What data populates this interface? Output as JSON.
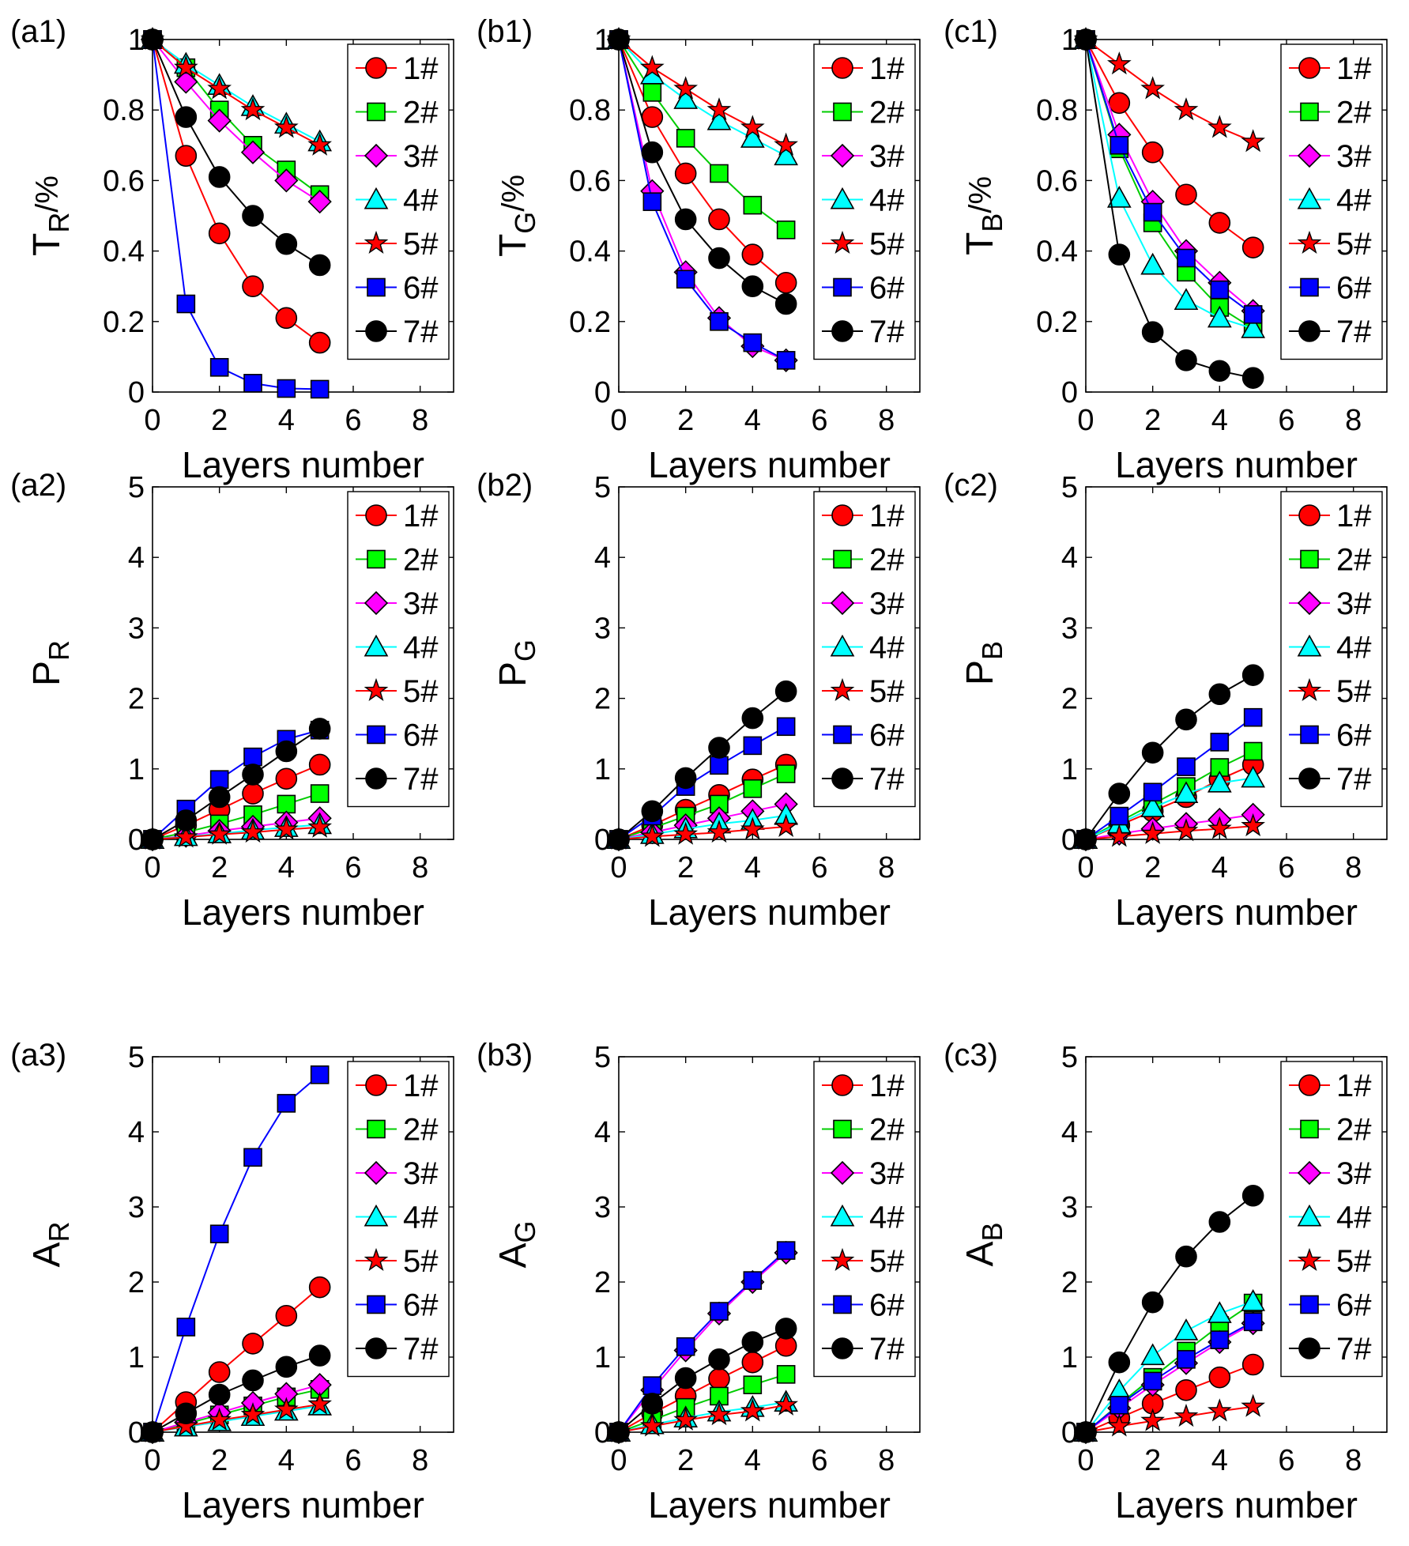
{
  "series_styles": [
    {
      "name": "1#",
      "line": "#ff0000",
      "fill": "#ff0000",
      "marker": "circle"
    },
    {
      "name": "2#",
      "line": "#00cc00",
      "fill": "#00ff00",
      "marker": "square"
    },
    {
      "name": "3#",
      "line": "#ff00ff",
      "fill": "#ff00ff",
      "marker": "diamond"
    },
    {
      "name": "4#",
      "line": "#00ffff",
      "fill": "#00ffff",
      "marker": "triangle"
    },
    {
      "name": "5#",
      "line": "#ff0000",
      "fill": "#ff0000",
      "marker": "star"
    },
    {
      "name": "6#",
      "line": "#0000ff",
      "fill": "#0000ff",
      "marker": "square"
    },
    {
      "name": "7#",
      "line": "#000000",
      "fill": "#000000",
      "marker": "circle"
    }
  ],
  "chart_data": [
    {
      "panel": "(a1)",
      "type": "line",
      "ylabel_main": "T",
      "ylabel_sub": "R",
      "ylabel_suffix": "/%",
      "xlabel": "Layers number",
      "ylim": [
        0,
        1
      ],
      "yticks": [
        0,
        0.2,
        0.4,
        0.6,
        0.8,
        1
      ],
      "ytick_labels": [
        "0",
        "0.2",
        "0.4",
        "0.6",
        "0.8",
        "1"
      ],
      "xlim": [
        0,
        9
      ],
      "xticks": [
        0,
        2,
        4,
        6,
        8
      ],
      "x": [
        0,
        1,
        2,
        3,
        4,
        5
      ],
      "legend_position": "top-right",
      "series": [
        {
          "name": "1#",
          "values": [
            1,
            0.67,
            0.45,
            0.3,
            0.21,
            0.14
          ]
        },
        {
          "name": "2#",
          "values": [
            1,
            0.92,
            0.8,
            0.7,
            0.63,
            0.56
          ]
        },
        {
          "name": "3#",
          "values": [
            1,
            0.88,
            0.77,
            0.68,
            0.6,
            0.54
          ]
        },
        {
          "name": "4#",
          "values": [
            1,
            0.93,
            0.87,
            0.81,
            0.76,
            0.71
          ]
        },
        {
          "name": "5#",
          "values": [
            1,
            0.92,
            0.86,
            0.8,
            0.75,
            0.7
          ]
        },
        {
          "name": "6#",
          "values": [
            1,
            0.25,
            0.07,
            0.025,
            0.01,
            0.008
          ]
        },
        {
          "name": "7#",
          "values": [
            1,
            0.78,
            0.61,
            0.5,
            0.42,
            0.36
          ]
        }
      ]
    },
    {
      "panel": "(b1)",
      "type": "line",
      "ylabel_main": "T",
      "ylabel_sub": "G",
      "ylabel_suffix": "/%",
      "xlabel": "Layers number",
      "ylim": [
        0,
        1
      ],
      "yticks": [
        0,
        0.2,
        0.4,
        0.6,
        0.8,
        1
      ],
      "ytick_labels": [
        "0",
        "0.2",
        "0.4",
        "0.6",
        "0.8",
        "1"
      ],
      "xlim": [
        0,
        9
      ],
      "xticks": [
        0,
        2,
        4,
        6,
        8
      ],
      "x": [
        0,
        1,
        2,
        3,
        4,
        5
      ],
      "legend_position": "top-right",
      "series": [
        {
          "name": "1#",
          "values": [
            1,
            0.78,
            0.62,
            0.49,
            0.39,
            0.31
          ]
        },
        {
          "name": "2#",
          "values": [
            1,
            0.85,
            0.72,
            0.62,
            0.53,
            0.46
          ]
        },
        {
          "name": "3#",
          "values": [
            1,
            0.57,
            0.34,
            0.21,
            0.13,
            0.09
          ]
        },
        {
          "name": "4#",
          "values": [
            1,
            0.9,
            0.83,
            0.77,
            0.72,
            0.67
          ]
        },
        {
          "name": "5#",
          "values": [
            1,
            0.92,
            0.86,
            0.8,
            0.75,
            0.7
          ]
        },
        {
          "name": "6#",
          "values": [
            1,
            0.54,
            0.32,
            0.2,
            0.14,
            0.09
          ]
        },
        {
          "name": "7#",
          "values": [
            1,
            0.68,
            0.49,
            0.38,
            0.3,
            0.25
          ]
        }
      ]
    },
    {
      "panel": "(c1)",
      "type": "line",
      "ylabel_main": "T",
      "ylabel_sub": "B",
      "ylabel_suffix": "/%",
      "xlabel": "Layers number",
      "ylim": [
        0,
        1
      ],
      "yticks": [
        0,
        0.2,
        0.4,
        0.6,
        0.8,
        1
      ],
      "ytick_labels": [
        "0",
        "0.2",
        "0.4",
        "0.6",
        "0.8",
        "1"
      ],
      "xlim": [
        0,
        9
      ],
      "xticks": [
        0,
        2,
        4,
        6,
        8
      ],
      "x": [
        0,
        1,
        2,
        3,
        4,
        5
      ],
      "legend_position": "top-right",
      "series": [
        {
          "name": "1#",
          "values": [
            1,
            0.82,
            0.68,
            0.56,
            0.48,
            0.41
          ]
        },
        {
          "name": "2#",
          "values": [
            1,
            0.69,
            0.48,
            0.34,
            0.24,
            0.18
          ]
        },
        {
          "name": "3#",
          "values": [
            1,
            0.73,
            0.54,
            0.4,
            0.31,
            0.23
          ]
        },
        {
          "name": "4#",
          "values": [
            1,
            0.55,
            0.36,
            0.26,
            0.21,
            0.18
          ]
        },
        {
          "name": "5#",
          "values": [
            1,
            0.93,
            0.86,
            0.8,
            0.75,
            0.71
          ]
        },
        {
          "name": "6#",
          "values": [
            1,
            0.7,
            0.51,
            0.38,
            0.29,
            0.22
          ]
        },
        {
          "name": "7#",
          "values": [
            1,
            0.39,
            0.17,
            0.09,
            0.06,
            0.04
          ]
        }
      ]
    },
    {
      "panel": "(a2)",
      "type": "line",
      "ylabel_main": "P",
      "ylabel_sub": "R",
      "ylabel_suffix": "",
      "xlabel": "Layers number",
      "ylim": [
        0,
        5
      ],
      "yticks": [
        0,
        1,
        2,
        3,
        4,
        5
      ],
      "ytick_labels": [
        "0",
        "1",
        "2",
        "3",
        "4",
        "5"
      ],
      "xlim": [
        0,
        9
      ],
      "xticks": [
        0,
        2,
        4,
        6,
        8
      ],
      "x": [
        0,
        1,
        2,
        3,
        4,
        5
      ],
      "legend_position": "top-right",
      "series": [
        {
          "name": "1#",
          "values": [
            0,
            0.2,
            0.42,
            0.65,
            0.86,
            1.06
          ]
        },
        {
          "name": "2#",
          "values": [
            0,
            0.1,
            0.22,
            0.35,
            0.5,
            0.65
          ]
        },
        {
          "name": "3#",
          "values": [
            0,
            0.05,
            0.12,
            0.18,
            0.24,
            0.3
          ]
        },
        {
          "name": "4#",
          "values": [
            0,
            0.04,
            0.08,
            0.13,
            0.17,
            0.21
          ]
        },
        {
          "name": "5#",
          "values": [
            0,
            0.03,
            0.07,
            0.1,
            0.14,
            0.17
          ]
        },
        {
          "name": "6#",
          "values": [
            0,
            0.43,
            0.85,
            1.17,
            1.42,
            1.55
          ]
        },
        {
          "name": "7#",
          "values": [
            0,
            0.27,
            0.6,
            0.92,
            1.25,
            1.57
          ]
        }
      ]
    },
    {
      "panel": "(b2)",
      "type": "line",
      "ylabel_main": "P",
      "ylabel_sub": "G",
      "ylabel_suffix": "",
      "xlabel": "Layers number",
      "ylim": [
        0,
        5
      ],
      "yticks": [
        0,
        1,
        2,
        3,
        4,
        5
      ],
      "ytick_labels": [
        "0",
        "1",
        "2",
        "3",
        "4",
        "5"
      ],
      "xlim": [
        0,
        9
      ],
      "xticks": [
        0,
        2,
        4,
        6,
        8
      ],
      "x": [
        0,
        1,
        2,
        3,
        4,
        5
      ],
      "legend_position": "top-right",
      "series": [
        {
          "name": "1#",
          "values": [
            0,
            0.2,
            0.42,
            0.63,
            0.85,
            1.06
          ]
        },
        {
          "name": "2#",
          "values": [
            0,
            0.16,
            0.33,
            0.5,
            0.72,
            0.93
          ]
        },
        {
          "name": "3#",
          "values": [
            0,
            0.1,
            0.2,
            0.3,
            0.4,
            0.5
          ]
        },
        {
          "name": "4#",
          "values": [
            0,
            0.07,
            0.15,
            0.22,
            0.27,
            0.34
          ]
        },
        {
          "name": "5#",
          "values": [
            0,
            0.04,
            0.07,
            0.1,
            0.14,
            0.18
          ]
        },
        {
          "name": "6#",
          "values": [
            0,
            0.33,
            0.75,
            1.05,
            1.33,
            1.6
          ]
        },
        {
          "name": "7#",
          "values": [
            0,
            0.4,
            0.87,
            1.3,
            1.72,
            2.1
          ]
        }
      ]
    },
    {
      "panel": "(c2)",
      "type": "line",
      "ylabel_main": "P",
      "ylabel_sub": "B",
      "ylabel_suffix": "",
      "xlabel": "Layers number",
      "ylim": [
        0,
        5
      ],
      "yticks": [
        0,
        1,
        2,
        3,
        4,
        5
      ],
      "ytick_labels": [
        "0",
        "1",
        "2",
        "3",
        "4",
        "5"
      ],
      "xlim": [
        0,
        9
      ],
      "xticks": [
        0,
        2,
        4,
        6,
        8
      ],
      "x": [
        0,
        1,
        2,
        3,
        4,
        5
      ],
      "legend_position": "top-right",
      "series": [
        {
          "name": "1#",
          "values": [
            0,
            0.2,
            0.4,
            0.6,
            0.85,
            1.06
          ]
        },
        {
          "name": "2#",
          "values": [
            0,
            0.25,
            0.5,
            0.75,
            1.02,
            1.25
          ]
        },
        {
          "name": "3#",
          "values": [
            0,
            0.08,
            0.15,
            0.22,
            0.28,
            0.35
          ]
        },
        {
          "name": "4#",
          "values": [
            0,
            0.22,
            0.45,
            0.65,
            0.8,
            0.87
          ]
        },
        {
          "name": "5#",
          "values": [
            0,
            0.04,
            0.08,
            0.12,
            0.15,
            0.19
          ]
        },
        {
          "name": "6#",
          "values": [
            0,
            0.33,
            0.67,
            1.03,
            1.38,
            1.73
          ]
        },
        {
          "name": "7#",
          "values": [
            0,
            0.65,
            1.23,
            1.7,
            2.06,
            2.33
          ]
        }
      ]
    },
    {
      "panel": "(a3)",
      "type": "line",
      "ylabel_main": "A",
      "ylabel_sub": "R",
      "ylabel_suffix": "",
      "xlabel": "Layers number",
      "ylim": [
        0,
        5
      ],
      "yticks": [
        0,
        1,
        2,
        3,
        4,
        5
      ],
      "ytick_labels": [
        "0",
        "1",
        "2",
        "3",
        "4",
        "5"
      ],
      "xlim": [
        0,
        9
      ],
      "xticks": [
        0,
        2,
        4,
        6,
        8
      ],
      "x": [
        0,
        1,
        2,
        3,
        4,
        5
      ],
      "legend_position": "top-right",
      "series": [
        {
          "name": "1#",
          "values": [
            0,
            0.4,
            0.8,
            1.18,
            1.55,
            1.93
          ]
        },
        {
          "name": "2#",
          "values": [
            0,
            0.11,
            0.23,
            0.35,
            0.47,
            0.57
          ]
        },
        {
          "name": "3#",
          "values": [
            0,
            0.13,
            0.26,
            0.39,
            0.51,
            0.63
          ]
        },
        {
          "name": "4#",
          "values": [
            0,
            0.07,
            0.14,
            0.21,
            0.28,
            0.35
          ]
        },
        {
          "name": "5#",
          "values": [
            0,
            0.08,
            0.16,
            0.23,
            0.3,
            0.37
          ]
        },
        {
          "name": "6#",
          "values": [
            0,
            1.4,
            2.64,
            3.66,
            4.38,
            4.76
          ]
        },
        {
          "name": "7#",
          "values": [
            0,
            0.25,
            0.5,
            0.69,
            0.87,
            1.02
          ]
        }
      ]
    },
    {
      "panel": "(b3)",
      "type": "line",
      "ylabel_main": "A",
      "ylabel_sub": "G",
      "ylabel_suffix": "",
      "xlabel": "Layers number",
      "ylim": [
        0,
        5
      ],
      "yticks": [
        0,
        1,
        2,
        3,
        4,
        5
      ],
      "ytick_labels": [
        "0",
        "1",
        "2",
        "3",
        "4",
        "5"
      ],
      "xlim": [
        0,
        9
      ],
      "xticks": [
        0,
        2,
        4,
        6,
        8
      ],
      "x": [
        0,
        1,
        2,
        3,
        4,
        5
      ],
      "legend_position": "top-right",
      "series": [
        {
          "name": "1#",
          "values": [
            0,
            0.25,
            0.48,
            0.71,
            0.93,
            1.15
          ]
        },
        {
          "name": "2#",
          "values": [
            0,
            0.16,
            0.33,
            0.48,
            0.63,
            0.77
          ]
        },
        {
          "name": "3#",
          "values": [
            0,
            0.56,
            1.09,
            1.58,
            2.0,
            2.39
          ]
        },
        {
          "name": "4#",
          "values": [
            0,
            0.1,
            0.19,
            0.27,
            0.33,
            0.4
          ]
        },
        {
          "name": "5#",
          "values": [
            0,
            0.08,
            0.16,
            0.23,
            0.28,
            0.36
          ]
        },
        {
          "name": "6#",
          "values": [
            0,
            0.62,
            1.14,
            1.61,
            2.02,
            2.42
          ]
        },
        {
          "name": "7#",
          "values": [
            0,
            0.38,
            0.72,
            0.97,
            1.2,
            1.38
          ]
        }
      ]
    },
    {
      "panel": "(c3)",
      "type": "line",
      "ylabel_main": "A",
      "ylabel_sub": "B",
      "ylabel_suffix": "",
      "xlabel": "Layers number",
      "ylim": [
        0,
        5
      ],
      "yticks": [
        0,
        1,
        2,
        3,
        4,
        5
      ],
      "ytick_labels": [
        "0",
        "1",
        "2",
        "3",
        "4",
        "5"
      ],
      "xlim": [
        0,
        9
      ],
      "xticks": [
        0,
        2,
        4,
        6,
        8
      ],
      "x": [
        0,
        1,
        2,
        3,
        4,
        5
      ],
      "legend_position": "top-right",
      "series": [
        {
          "name": "1#",
          "values": [
            0,
            0.19,
            0.38,
            0.56,
            0.73,
            0.9
          ]
        },
        {
          "name": "2#",
          "values": [
            0,
            0.37,
            0.73,
            1.08,
            1.42,
            1.72
          ]
        },
        {
          "name": "3#",
          "values": [
            0,
            0.32,
            0.63,
            0.92,
            1.2,
            1.45
          ]
        },
        {
          "name": "4#",
          "values": [
            0,
            0.55,
            1.02,
            1.35,
            1.58,
            1.74
          ]
        },
        {
          "name": "5#",
          "values": [
            0,
            0.08,
            0.15,
            0.21,
            0.28,
            0.34
          ]
        },
        {
          "name": "6#",
          "values": [
            0,
            0.36,
            0.68,
            0.97,
            1.23,
            1.47
          ]
        },
        {
          "name": "7#",
          "values": [
            0,
            0.93,
            1.73,
            2.34,
            2.8,
            3.15
          ]
        }
      ]
    }
  ]
}
